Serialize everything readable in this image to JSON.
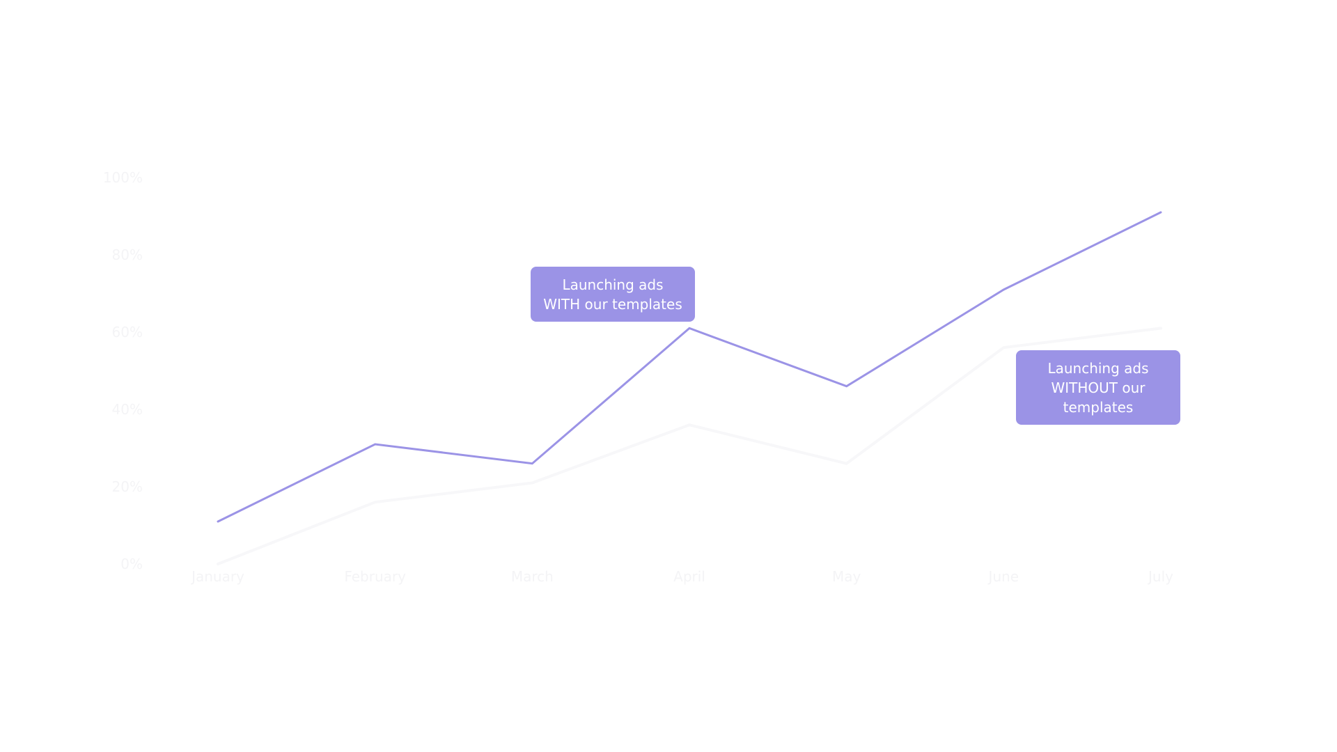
{
  "chart_data": {
    "type": "line",
    "title": "",
    "xlabel": "",
    "ylabel": "",
    "categories": [
      "January",
      "February",
      "March",
      "April",
      "May",
      "June",
      "July"
    ],
    "y_ticks": [
      "0%",
      "20%",
      "40%",
      "60%",
      "80%",
      "100%"
    ],
    "ylim": [
      0,
      100
    ],
    "grid": false,
    "legend": "none",
    "series": [
      {
        "key": "with",
        "values": [
          11,
          31,
          26,
          61,
          46,
          71,
          91
        ],
        "color": "#9b93e6"
      },
      {
        "key": "without",
        "values": [
          0,
          16,
          21,
          36,
          26,
          56,
          61
        ],
        "color": "#f7f7f9"
      }
    ],
    "annotations": [
      {
        "key": "with",
        "text": "Launching ads WITH our templates"
      },
      {
        "key": "without",
        "text": "Launching ads WITHOUT  our templates"
      }
    ]
  },
  "colors": {
    "background": "#ffffff",
    "callout_fill": "#9b93e6",
    "callout_text": "#ffffff",
    "axis_label": "#f4f4f6"
  }
}
